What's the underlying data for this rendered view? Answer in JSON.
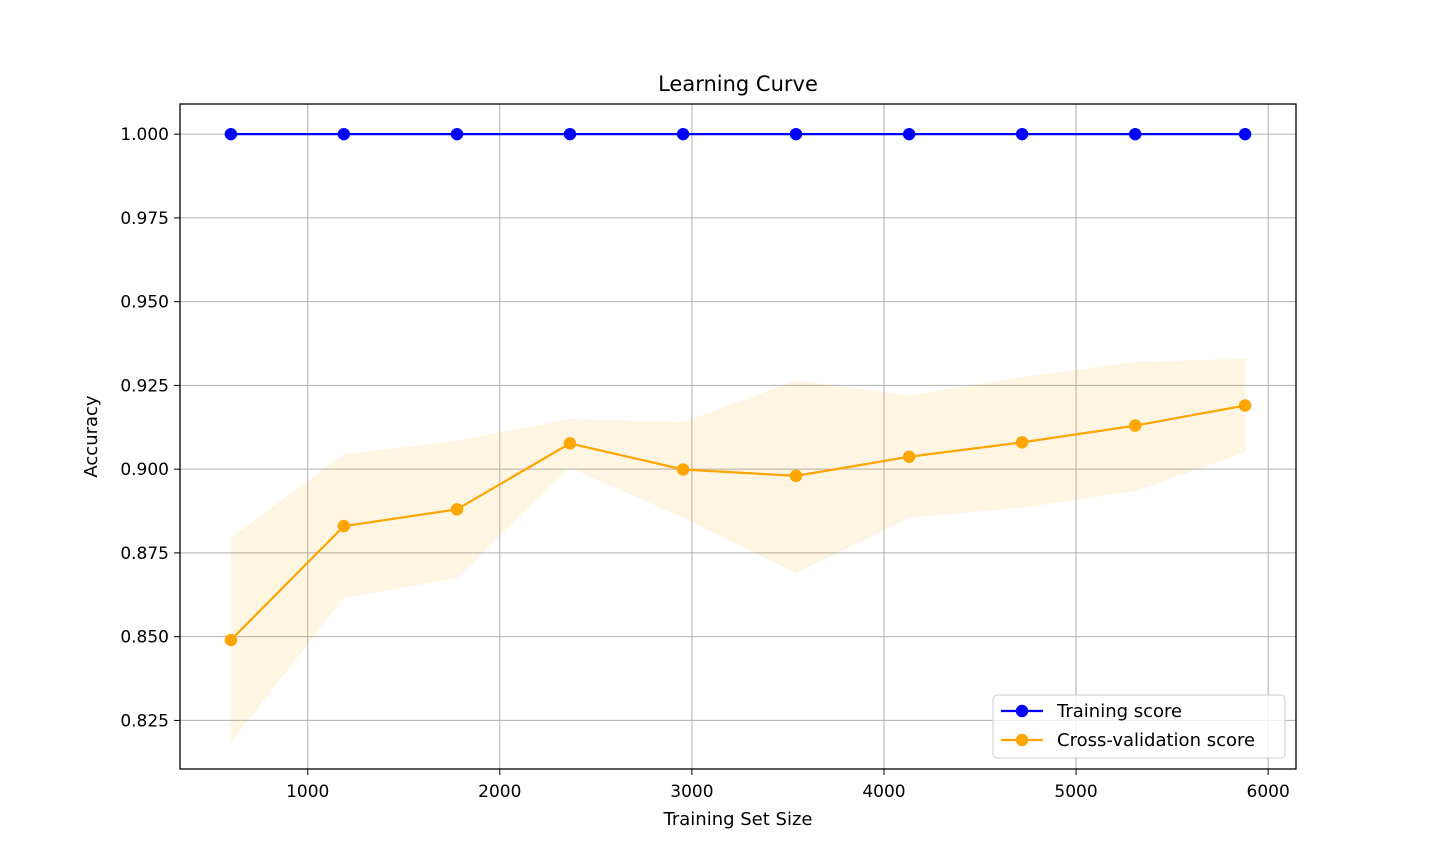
{
  "chart_data": {
    "type": "line",
    "title": "Learning Curve",
    "xlabel": "Training Set Size",
    "ylabel": "Accuracy",
    "xlim": [
      335,
      6145
    ],
    "ylim": [
      0.8105,
      1.009
    ],
    "x_ticks": [
      1000,
      2000,
      3000,
      4000,
      5000,
      6000
    ],
    "x_tick_labels": [
      "1000",
      "2000",
      "3000",
      "4000",
      "5000",
      "6000"
    ],
    "y_ticks": [
      0.825,
      0.85,
      0.875,
      0.9,
      0.925,
      0.95,
      0.975,
      1.0
    ],
    "y_tick_labels": [
      "0.825",
      "0.850",
      "0.875",
      "0.900",
      "0.925",
      "0.950",
      "0.975",
      "1.000"
    ],
    "grid": true,
    "legend_position": "lower-right",
    "x": [
      600,
      1188,
      1777,
      2365,
      2954,
      3542,
      4131,
      4719,
      5308,
      5880
    ],
    "series": [
      {
        "name": "Training score",
        "color": "#0000ff",
        "marker": "circle",
        "values": [
          1.0,
          1.0,
          1.0,
          1.0,
          1.0,
          1.0,
          1.0,
          1.0,
          1.0,
          1.0
        ]
      },
      {
        "name": "Cross-validation score",
        "color": "#ffa500",
        "marker": "circle",
        "values": [
          0.849,
          0.883,
          0.888,
          0.9077,
          0.8999,
          0.898,
          0.9037,
          0.908,
          0.913,
          0.919
        ],
        "band_upper": [
          0.8795,
          0.9045,
          0.9085,
          0.915,
          0.914,
          0.9265,
          0.922,
          0.9275,
          0.932,
          0.933
        ],
        "band_lower": [
          0.8185,
          0.8615,
          0.8675,
          0.9005,
          0.8855,
          0.869,
          0.8855,
          0.8885,
          0.8935,
          0.905
        ],
        "band_color": "#ffa500"
      }
    ]
  }
}
